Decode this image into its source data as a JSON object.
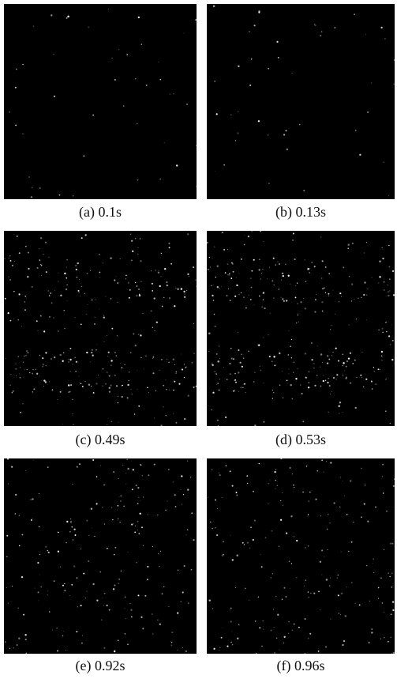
{
  "figure": {
    "panels": [
      {
        "caption": "(a)  0.1s",
        "particle_level": "sparse"
      },
      {
        "caption": "(b)  0.13s",
        "particle_level": "sparse"
      },
      {
        "caption": "(c)  0.49s",
        "particle_level": "dense"
      },
      {
        "caption": "(d)  0.53s",
        "particle_level": "dense"
      },
      {
        "caption": "(e)  0.92s",
        "particle_level": "medium"
      },
      {
        "caption": "(f)  0.96s",
        "particle_level": "medium"
      }
    ],
    "colors": {
      "background": "#000000",
      "particle": "#ffffff",
      "page": "#ffffff"
    }
  }
}
